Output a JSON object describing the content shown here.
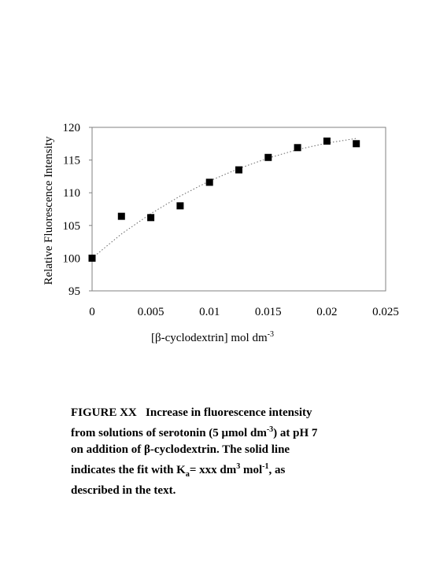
{
  "chart_data": {
    "type": "scatter",
    "ylabel": "Relative Fluorescence Intensity",
    "xlabel_parts": {
      "open": "[",
      "beta": "β",
      "main": "-cyclodextrin] mol dm",
      "exp": "-3"
    },
    "xlim": [
      0,
      0.025
    ],
    "ylim": [
      95,
      120
    ],
    "xticks": [
      "0",
      "0.005",
      "0.01",
      "0.015",
      "0.02",
      "0.025"
    ],
    "xtick_values": [
      0,
      0.005,
      0.01,
      0.015,
      0.02,
      0.025
    ],
    "yticks": [
      "95",
      "100",
      "105",
      "110",
      "115",
      "120"
    ],
    "ytick_values": [
      95,
      100,
      105,
      110,
      115,
      120
    ],
    "grid": false,
    "series": [
      {
        "x": [
          0,
          0.0025,
          0.005,
          0.0075,
          0.01,
          0.0125,
          0.015,
          0.0175,
          0.02,
          0.0225
        ],
        "y": [
          100.0,
          106.4,
          106.2,
          108.0,
          111.6,
          113.5,
          115.4,
          116.9,
          117.9,
          117.5
        ]
      }
    ],
    "fit_line": {
      "style": "dotted",
      "x": [
        0,
        0.0025,
        0.005,
        0.0075,
        0.01,
        0.0125,
        0.015,
        0.0175,
        0.02,
        0.0225
      ],
      "y": [
        100.0,
        103.7,
        106.8,
        109.5,
        111.8,
        113.7,
        115.3,
        116.6,
        117.6,
        118.3
      ]
    }
  },
  "caption": {
    "lead": "FIGURE XX",
    "line1": "Increase in fluorescence intensity",
    "line2_pre": "from solutions of serotonin (5 ",
    "mu": "μ",
    "line2_unit": "mol dm",
    "line2_exp": "-3",
    "line2_post": ") at pH 7",
    "line3_pre": "on addition of ",
    "beta": "β",
    "line3_post": "-cyclodextrin. The solid line",
    "line4_pre": "indicates the fit with K",
    "line4_sub": "a",
    "line4_mid": "= xxx dm",
    "line4_exp1": "3",
    "line4_mid2": " mol",
    "line4_exp2": "-1",
    "line4_post": ", as",
    "line5": "described in the text."
  }
}
